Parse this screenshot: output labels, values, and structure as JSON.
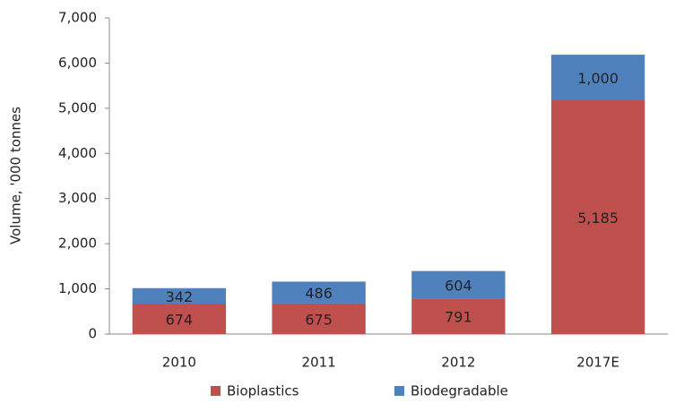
{
  "chart_data": {
    "type": "stacked_bar",
    "y_label": "Volume,  '000 tonnes",
    "categories": [
      "2010",
      "2011",
      "2012",
      "2017E"
    ],
    "series": [
      {
        "name": "Bioplastics",
        "color": "#c0504d",
        "values": [
          674,
          675,
          791,
          5185
        ],
        "value_labels": [
          "674",
          "675",
          "791",
          "5,185"
        ]
      },
      {
        "name": "Biodegradable",
        "color": "#4f81bd",
        "values": [
          342,
          486,
          604,
          1000
        ],
        "value_labels": [
          "342",
          "486",
          "604",
          "1,000"
        ]
      }
    ],
    "ylim": [
      0,
      7000
    ],
    "yticks": [
      0,
      {
        "value": 1000,
        "label": "1,000"
      },
      {
        "value": 2000,
        "label": "2,000"
      },
      {
        "value": 3000,
        "label": "3,000"
      },
      {
        "value": 4000,
        "label": "4,000"
      },
      {
        "value": 5000,
        "label": "5,000"
      },
      {
        "value": 6000,
        "label": "6,000"
      },
      {
        "value": 7000,
        "label": "7,000"
      }
    ],
    "grid": false,
    "legend": "bottom"
  }
}
